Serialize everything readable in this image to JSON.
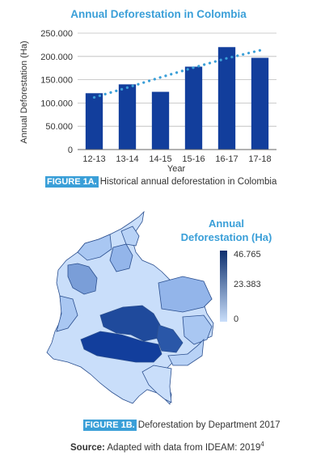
{
  "chart_data": {
    "type": "bar",
    "title": "Annual Deforestation in Colombia",
    "xlabel": "Year",
    "ylabel": "Annual Deforestation (Ha)",
    "categories": [
      "12-13",
      "13-14",
      "14-15",
      "15-16",
      "16-17",
      "17-18"
    ],
    "values": [
      121000,
      140000,
      124000,
      178000,
      220000,
      197000
    ],
    "trend": [
      112000,
      133000,
      155000,
      176000,
      196000,
      213000
    ],
    "ylim": [
      0,
      250000
    ],
    "yticks": [
      0,
      50000,
      100000,
      150000,
      200000,
      250000
    ],
    "ytick_labels": [
      "0",
      "50.000",
      "100.000",
      "150.000",
      "200.000",
      "250.000"
    ],
    "colors": {
      "bars": "#123e9c",
      "trend": "#3a9fd8"
    }
  },
  "captions": {
    "fig1a_tag": "FIGURE 1A.",
    "fig1a_text": "Historical annual deforestation in Colombia",
    "fig1b_tag": "FIGURE 1B.",
    "fig1b_text": "Deforestation by Department 2017",
    "source_label": "Source:",
    "source_text": "Adapted with data from IDEAM: 2019",
    "source_sup": "4"
  },
  "map_legend": {
    "title_line1": "Annual",
    "title_line2": "Deforestation (Ha)",
    "max": "46.765",
    "mid": "23.383",
    "min": "0",
    "colors": {
      "low": "#c9defa",
      "high": "#0d2f6e"
    }
  }
}
